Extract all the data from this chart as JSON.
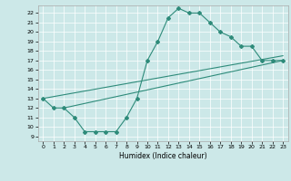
{
  "title": "",
  "xlabel": "Humidex (Indice chaleur)",
  "xlim": [
    -0.5,
    23.5
  ],
  "ylim": [
    8.5,
    22.8
  ],
  "xticks": [
    0,
    1,
    2,
    3,
    4,
    5,
    6,
    7,
    8,
    9,
    10,
    11,
    12,
    13,
    14,
    15,
    16,
    17,
    18,
    19,
    20,
    21,
    22,
    23
  ],
  "yticks": [
    9,
    10,
    11,
    12,
    13,
    14,
    15,
    16,
    17,
    18,
    19,
    20,
    21,
    22
  ],
  "line_color": "#2e8b7a",
  "bg_color": "#cce8e8",
  "grid_color": "#ffffff",
  "line1_x": [
    0,
    1,
    2,
    3,
    4,
    5,
    6,
    7,
    8,
    9,
    10,
    11,
    12,
    13,
    14,
    15,
    16,
    17,
    18,
    19,
    20,
    21,
    22,
    23
  ],
  "line1_y": [
    13,
    12,
    12,
    11,
    9.5,
    9.5,
    9.5,
    9.5,
    11,
    13,
    17,
    19,
    21.5,
    22.5,
    22,
    22,
    21,
    20,
    19.5,
    18.5,
    18.5,
    17,
    17,
    17
  ],
  "line2_x": [
    0,
    23
  ],
  "line2_y": [
    13,
    17.5
  ],
  "line3_x": [
    2,
    23
  ],
  "line3_y": [
    12,
    17
  ]
}
